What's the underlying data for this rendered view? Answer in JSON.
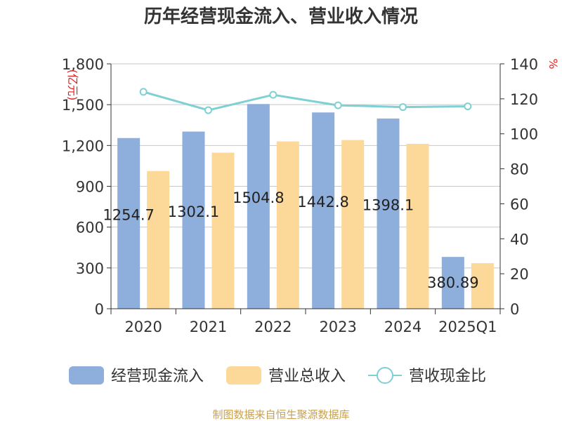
{
  "chart_data": {
    "type": "bar",
    "title": "历年经营现金流入、营业收入情况",
    "categories": [
      "2020",
      "2021",
      "2022",
      "2023",
      "2024",
      "2025Q1"
    ],
    "series": [
      {
        "name": "经营现金流入",
        "kind": "bar",
        "axis": "left",
        "color": "#8eaedb",
        "values": [
          1254.7,
          1302.1,
          1504.8,
          1442.8,
          1398.1,
          380.89
        ],
        "labels": [
          "1254.7",
          "1302.1",
          "1504.8",
          "1442.8",
          "1398.1",
          "380.89"
        ]
      },
      {
        "name": "营业总收入",
        "kind": "bar",
        "axis": "left",
        "color": "#fdd999",
        "values": [
          1012,
          1147,
          1230,
          1240,
          1212,
          335
        ]
      },
      {
        "name": "营收现金比",
        "kind": "line",
        "axis": "right",
        "color": "#7fd0d4",
        "values": [
          124,
          113.5,
          122.3,
          116.3,
          115.3,
          115.7
        ]
      }
    ],
    "left_axis": {
      "label": "(亿元)",
      "ylim": [
        0,
        1800
      ],
      "ticks": [
        0,
        300,
        600,
        900,
        1200,
        1500,
        1800
      ],
      "tick_labels": [
        "0",
        "300",
        "600",
        "900",
        "1,200",
        "1,500",
        "1,800"
      ]
    },
    "right_axis": {
      "label": "%",
      "ylim": [
        0,
        140
      ],
      "ticks": [
        0,
        20,
        40,
        60,
        80,
        100,
        120,
        140
      ],
      "tick_labels": [
        "0",
        "20",
        "40",
        "60",
        "80",
        "100",
        "120",
        "140"
      ]
    },
    "grid": true,
    "legend_position": "bottom"
  },
  "source": "制图数据来自恒生聚源数据库"
}
